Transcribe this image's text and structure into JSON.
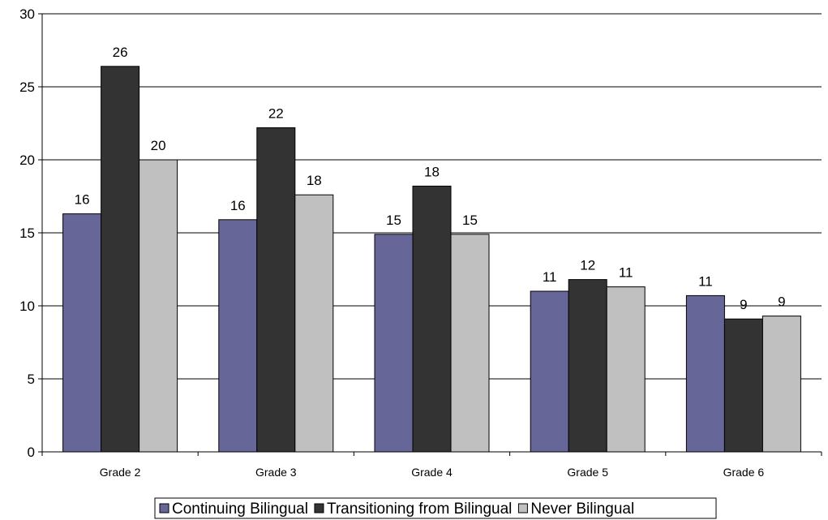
{
  "chart_data": {
    "type": "bar",
    "categories": [
      "Grade 2",
      "Grade 3",
      "Grade 4",
      "Grade 5",
      "Grade 6"
    ],
    "series": [
      {
        "name": "Continuing Bilingual",
        "values": [
          16.3,
          15.9,
          14.9,
          11.0,
          10.7
        ],
        "labels": [
          "16",
          "16",
          "15",
          "11",
          "11"
        ],
        "color": "#666699"
      },
      {
        "name": "Transitioning from Bilingual",
        "values": [
          26.4,
          22.2,
          18.2,
          11.8,
          9.1
        ],
        "labels": [
          "26",
          "22",
          "18",
          "12",
          "9"
        ],
        "color": "#333333"
      },
      {
        "name": "Never Bilingual",
        "values": [
          20.0,
          17.6,
          14.9,
          11.3,
          9.3
        ],
        "labels": [
          "20",
          "18",
          "15",
          "11",
          "9"
        ],
        "color": "#c0c0c0"
      }
    ],
    "ylim": [
      0,
      30
    ],
    "yticks": [
      0,
      5,
      10,
      15,
      20,
      25,
      30
    ],
    "grid": true,
    "legend_position": "bottom"
  }
}
